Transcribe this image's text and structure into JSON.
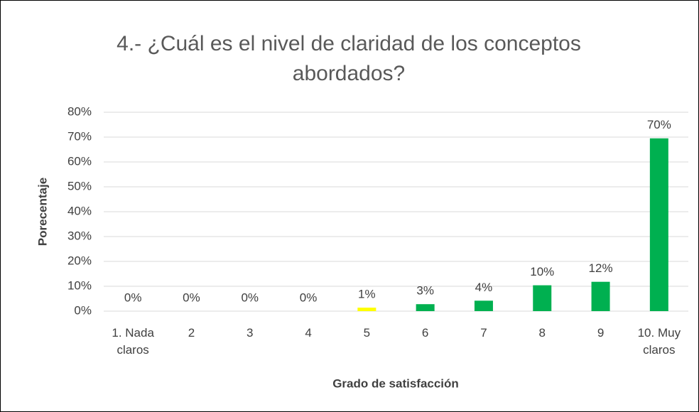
{
  "chart_data": {
    "type": "bar",
    "title": "4.- ¿Cuál es el nivel de claridad de los conceptos abordados?",
    "x_label": "Grado de satisfacción",
    "y_label": "Porecentaje",
    "categories": [
      "1. Nada claros",
      "2",
      "3",
      "4",
      "5",
      "6",
      "7",
      "8",
      "9",
      "10. Muy claros"
    ],
    "values": [
      0,
      0,
      0,
      0,
      1.4,
      2.8,
      4.2,
      10.4,
      11.8,
      69.5
    ],
    "value_labels": [
      "0%",
      "0%",
      "0%",
      "0%",
      "1%",
      "3%",
      "4%",
      "10%",
      "12%",
      "70%"
    ],
    "colors": [
      "#00b050",
      "#00b050",
      "#00b050",
      "#00b050",
      "#ffff00",
      "#00b050",
      "#00b050",
      "#00b050",
      "#00b050",
      "#00b050"
    ],
    "ylim": [
      0,
      80
    ],
    "yticks": [
      {
        "value": 0,
        "label": "0%"
      },
      {
        "value": 10,
        "label": "10%"
      },
      {
        "value": 20,
        "label": "20%"
      },
      {
        "value": 30,
        "label": "30%"
      },
      {
        "value": 40,
        "label": "40%"
      },
      {
        "value": 50,
        "label": "50%"
      },
      {
        "value": 60,
        "label": "60%"
      },
      {
        "value": 70,
        "label": "70%"
      },
      {
        "value": 80,
        "label": "80%"
      }
    ],
    "grid": true
  }
}
